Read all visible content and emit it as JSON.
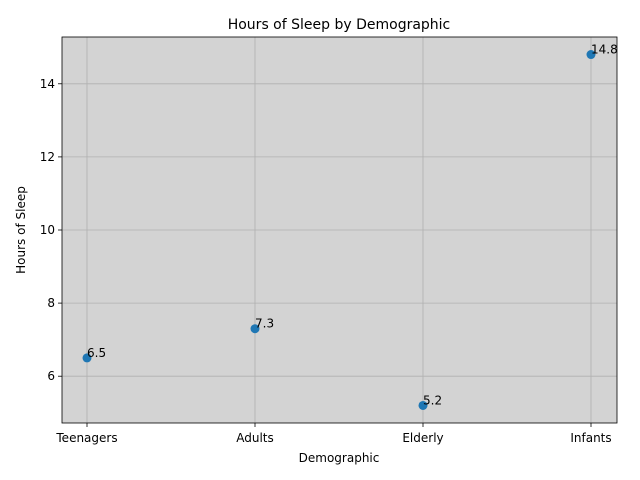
{
  "chart_data": {
    "type": "scatter",
    "title": "Hours of Sleep by Demographic",
    "xlabel": "Demographic",
    "ylabel": "Hours of Sleep",
    "categories": [
      "Teenagers",
      "Adults",
      "Elderly",
      "Infants"
    ],
    "values": [
      6.5,
      7.3,
      5.2,
      14.8
    ],
    "data_labels": [
      "6.5",
      "7.3",
      "5.2",
      "14.8"
    ],
    "ylim": [
      4.72,
      15.28
    ],
    "yticks": [
      6,
      8,
      10,
      12,
      14
    ],
    "ytick_labels": [
      "6",
      "8",
      "10",
      "12",
      "14"
    ],
    "grid": true,
    "colors": {
      "marker": "#1f77b4",
      "plot_background": "#d3d3d3",
      "grid": "#b0b0b0"
    }
  }
}
